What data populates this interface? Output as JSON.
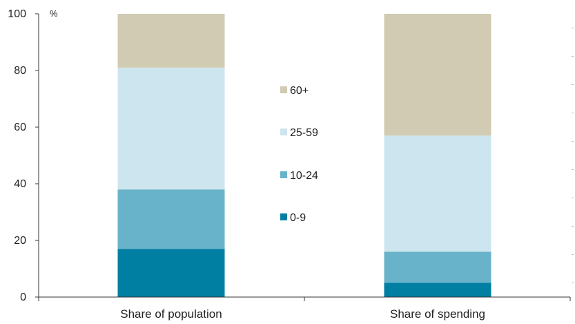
{
  "chart_data": {
    "type": "bar",
    "stacked": true,
    "unit": "%",
    "categories": [
      "Share of population",
      "Share of spending"
    ],
    "series": [
      {
        "name": "0-9",
        "values": [
          17,
          5
        ],
        "color": "#007FA3"
      },
      {
        "name": "10-24",
        "values": [
          21,
          11
        ],
        "color": "#68B3C9"
      },
      {
        "name": "25-59",
        "values": [
          43,
          41
        ],
        "color": "#CDE5EE"
      },
      {
        "name": "60+",
        "values": [
          19,
          43
        ],
        "color": "#D0CBB2"
      }
    ],
    "ylim": [
      0,
      100
    ],
    "yticks": [
      0,
      20,
      40,
      60,
      80,
      100
    ],
    "legend_order": [
      "60+",
      "25-59",
      "10-24",
      "0-9"
    ],
    "legend_placement": "center",
    "grid": false
  }
}
